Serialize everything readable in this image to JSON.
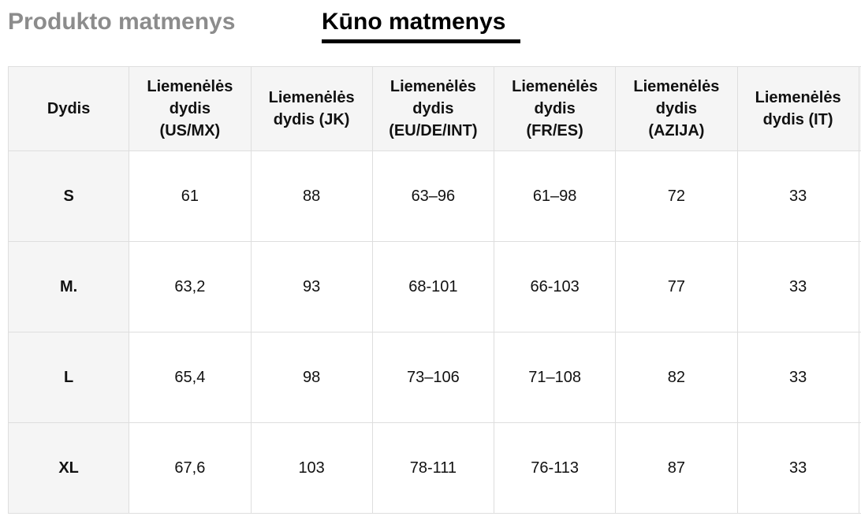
{
  "tabs": {
    "product": "Produkto matmenys",
    "body": "Kūno matmenys",
    "active": "body"
  },
  "table": {
    "headers": [
      "Dydis",
      "Liemenėlės\ndydis\n(US/MX)",
      "Liemenėlės\ndydis (JK)",
      "Liemenėlės\ndydis\n(EU/DE/INT)",
      "Liemenėlės\ndydis\n(FR/ES)",
      "Liemenėlės\ndydis\n(AZIJA)",
      "Liemenėlės\ndydis (IT)"
    ],
    "rows": [
      [
        "S",
        "61",
        "88",
        "63–96",
        "61–98",
        "72",
        "33"
      ],
      [
        "M.",
        "63,2",
        "93",
        "68-101",
        "66-103",
        "77",
        "33"
      ],
      [
        "L",
        "65,4",
        "98",
        "73–106",
        "71–108",
        "82",
        "33"
      ],
      [
        "XL",
        "67,6",
        "103",
        "78-111",
        "76-113",
        "87",
        "33"
      ]
    ]
  }
}
